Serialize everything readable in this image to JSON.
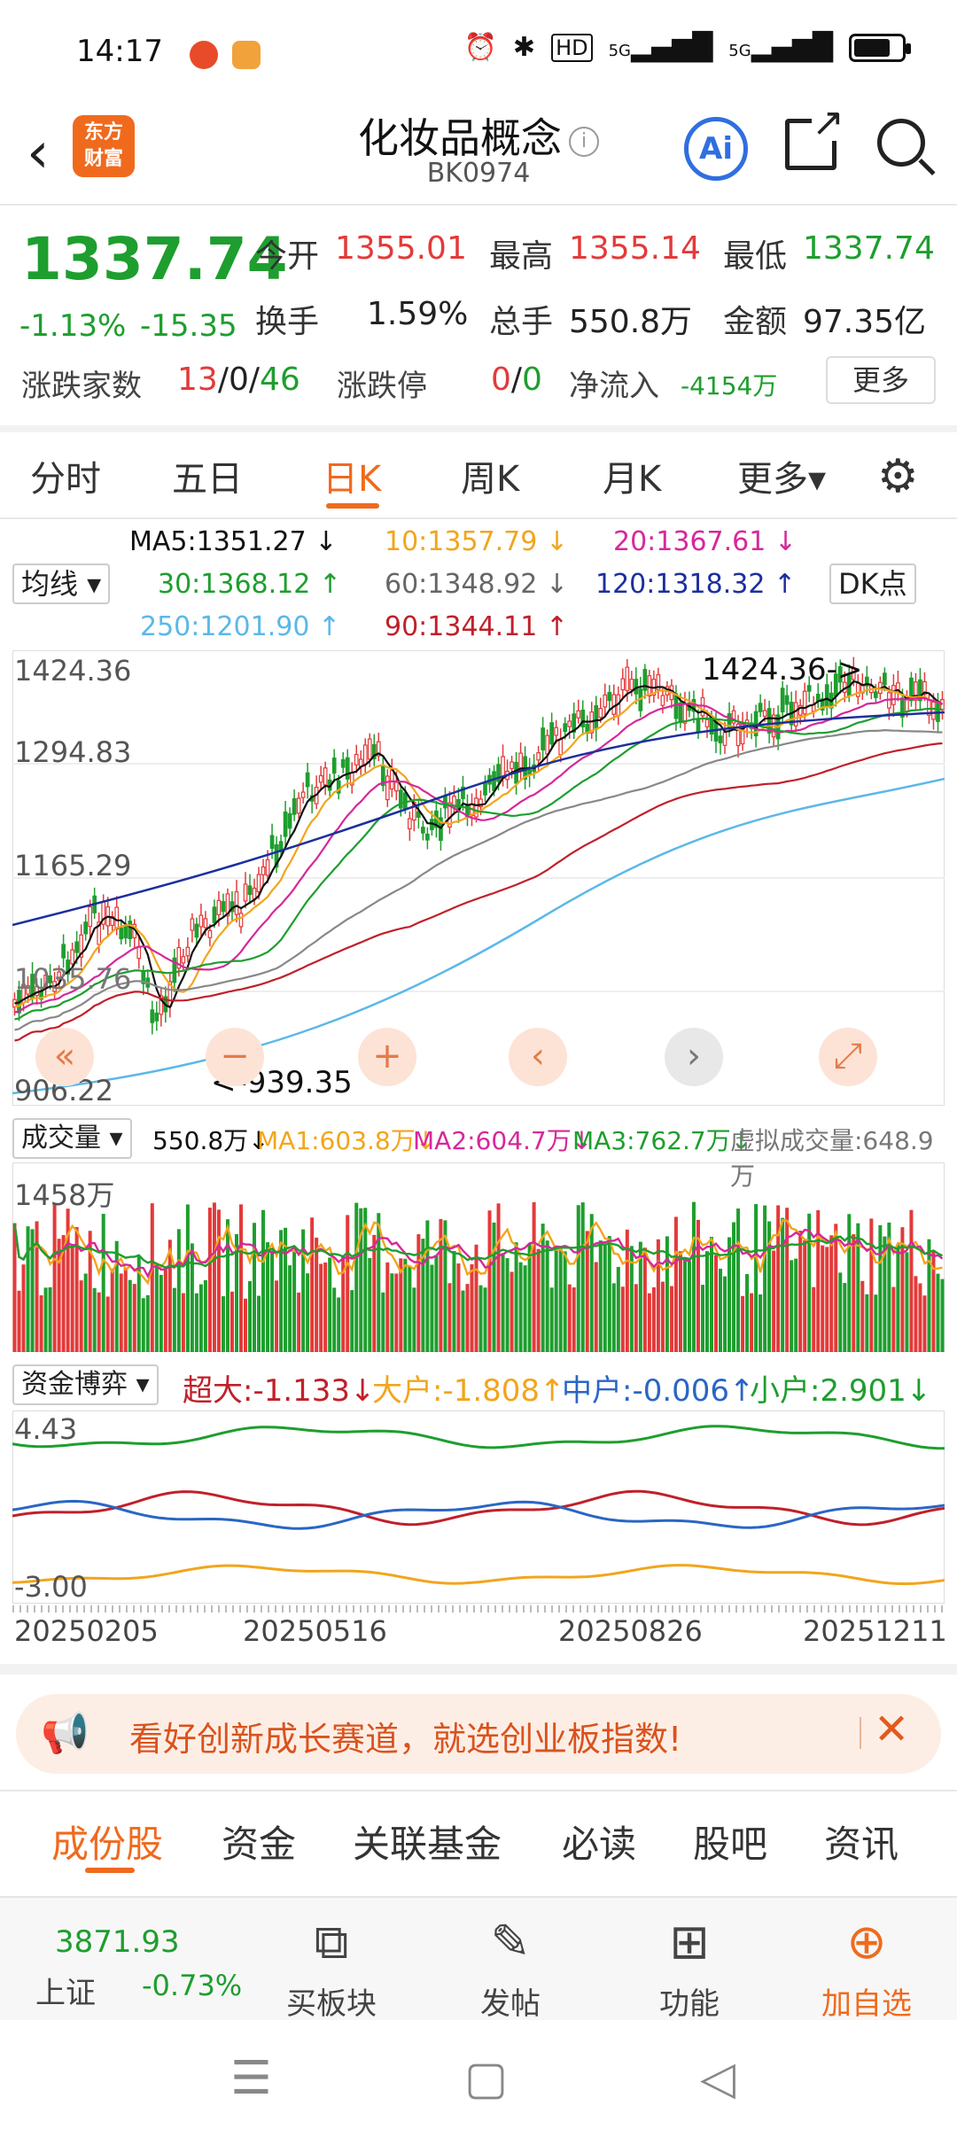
{
  "status": {
    "time": "14:17",
    "hd": "HD",
    "net1": "5G",
    "net2": "5G"
  },
  "header": {
    "back_icon": "back-arrow-icon",
    "logo_line1": "东方",
    "logo_line2": "财富",
    "title": "化妆品概念",
    "code": "BK0974",
    "ai_label": "Ai"
  },
  "quote": {
    "price": "1337.74",
    "change_pct": "-1.13%",
    "change": "-15.35",
    "open_label": "今开",
    "open": "1355.01",
    "high_label": "最高",
    "high": "1355.14",
    "low_label": "最低",
    "low": "1337.74",
    "turnover_label": "换手",
    "turnover": "1.59%",
    "volume_label": "总手",
    "volume": "550.8万",
    "amount_label": "金额",
    "amount": "97.35亿",
    "updown_label": "涨跌家数",
    "up": "13",
    "flat": "0",
    "down": "46",
    "sep1": "/",
    "sep2": "/",
    "limit_label": "涨跌停",
    "limit_up": "0",
    "limit_sep": "/",
    "limit_down": "0",
    "netflow_label": "净流入",
    "netflow": "-4154万",
    "more": "更多"
  },
  "ktabs": {
    "t1": "分时",
    "t2": "五日",
    "t3": "日K",
    "t4": "周K",
    "t5": "月K",
    "t6": "更多▾"
  },
  "ma": {
    "selector": "均线 ▾",
    "ma5": "MA5:1351.27 ↓",
    "ma10": "10:1357.79 ↓",
    "ma20": "20:1367.61 ↓",
    "ma30": "30:1368.12 ↑",
    "ma60": "60:1348.92 ↓",
    "ma120": "120:1318.32 ↑",
    "ma250": "250:1201.90 ↑",
    "ma90": "90:1344.11 ↑",
    "dk": "DK点"
  },
  "kchart_labels": {
    "y1": "1424.36",
    "y2": "1294.83",
    "y3": "1165.29",
    "y4": "1035.76",
    "y5": "906.22",
    "hi_note": "1424.36->",
    "lo_note": "<-939.35"
  },
  "volume": {
    "selector": "成交量 ▾",
    "vol": "550.8万↓",
    "ma1": "MA1:603.8万↓",
    "ma2": "MA2:604.7万↓",
    "ma3": "MA3:762.7万↓",
    "virtual": "虚拟成交量:648.9万",
    "ymax": "1458万"
  },
  "fund": {
    "selector": "资金博弈 ▾",
    "super": "超大:-1.133↓",
    "big": "大户:-1.808↑",
    "mid": "中户:-0.006↑",
    "small": "小户:2.901↓",
    "ymax": "4.43",
    "ymin": "-3.00"
  },
  "dates": {
    "d1": "20250205",
    "d2": "20250516",
    "d3": "20250826",
    "d4": "20251211"
  },
  "banner": {
    "text": "看好创新成长赛道，就选创业板指数!"
  },
  "btabs": {
    "t1": "成份股",
    "t2": "资金",
    "t3": "关联基金",
    "t4": "必读",
    "t5": "股吧",
    "t6": "资讯"
  },
  "bottombar": {
    "index_value": "3871.93",
    "index_name": "上证",
    "index_change": "-0.73%",
    "b1": "买板块",
    "b2": "发帖",
    "b3": "功能",
    "b4": "加自选"
  },
  "colors": {
    "accent": "#f06a1d",
    "up": "#e33a3a",
    "down": "#1e9e2e"
  }
}
